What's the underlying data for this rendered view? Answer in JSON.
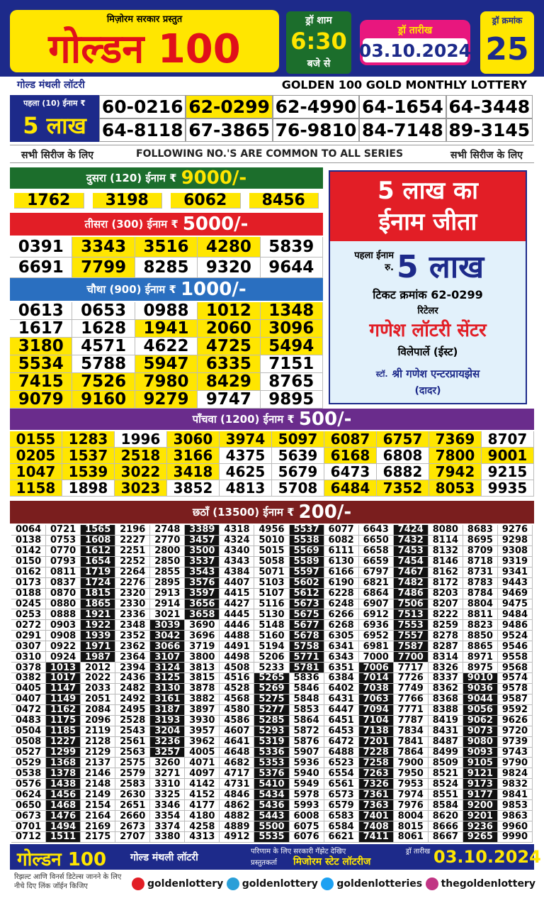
{
  "header": {
    "presented_by": "मिज़ोरम सरकार प्रस्तुत",
    "title": "गोल्डन 100",
    "draw_time_label": "ड्रॉ शाम",
    "draw_time": "6:30",
    "draw_time_suffix": "बजे से",
    "draw_date_label": "ड्रॉ तारीख",
    "draw_date": "03.10.2024",
    "draw_no_label": "ड्रॉ क्रमांक",
    "draw_no": "25",
    "subtitle_hindi": "गोल्ड मंथली लॉटरी",
    "subtitle_english": "GOLDEN 100 GOLD MONTHLY LOTTERY"
  },
  "first_prize": {
    "label": "पहला (10) ईनाम ₹",
    "amount": "5 लाख",
    "numbers": [
      "60-0216",
      "62-0299",
      "62-4990",
      "64-1654",
      "64-3448",
      "64-8118",
      "67-3865",
      "76-9810",
      "84-7148",
      "89-3145"
    ]
  },
  "common_note": {
    "left": "सभी सिरीज के लिए",
    "center": "FOLLOWING NO.'S ARE COMMON TO ALL SERIES",
    "right": "सभी सिरीज के लिए"
  },
  "prizes": [
    {
      "label": "दुसरा (120) ईनाम ₹",
      "amount": "9000/-",
      "numbers": [
        "1762",
        "3198",
        "6062",
        "8456"
      ]
    },
    {
      "label": "तीसरा (300) ईनाम ₹",
      "amount": "5000/-",
      "numbers": [
        "0391",
        "3343",
        "3516",
        "4280",
        "5839",
        "6691",
        "7799",
        "8285",
        "9320",
        "9644"
      ]
    },
    {
      "label": "चौथा (900) ईनाम ₹",
      "amount": "1000/-",
      "numbers": [
        "0613",
        "0653",
        "0988",
        "1012",
        "1348",
        "1617",
        "1628",
        "1941",
        "2060",
        "3096",
        "3180",
        "4571",
        "4622",
        "4725",
        "5494",
        "5534",
        "5788",
        "5947",
        "6335",
        "7151",
        "7415",
        "7526",
        "7980",
        "8429",
        "8765",
        "9079",
        "9160",
        "9279",
        "9747",
        "9895"
      ]
    },
    {
      "label": "पाँचवा (1200) ईनाम ₹",
      "amount": "500/-",
      "numbers": [
        "0155",
        "1283",
        "1996",
        "3060",
        "3974",
        "5097",
        "6087",
        "6757",
        "7369",
        "8707",
        "0205",
        "1537",
        "2518",
        "3166",
        "4375",
        "5639",
        "6168",
        "6808",
        "7800",
        "9001",
        "1047",
        "1539",
        "3022",
        "3418",
        "4625",
        "5679",
        "6473",
        "6882",
        "7942",
        "9215",
        "1158",
        "1898",
        "3023",
        "3852",
        "4813",
        "5708",
        "6484",
        "7352",
        "8053",
        "9935"
      ]
    },
    {
      "label": "छठाँ (13500) ईनाम ₹",
      "amount": "200/-",
      "columns": [
        [
          "0064",
          "0138",
          "0142",
          "0150",
          "0162",
          "0173",
          "0188",
          "0245",
          "0253",
          "0272",
          "0291",
          "0307",
          "0310",
          "0378",
          "0382",
          "0405",
          "0407",
          "0472",
          "0483",
          "0504",
          "0508",
          "0527",
          "0529",
          "0538",
          "0576",
          "0624",
          "0650",
          "0673",
          "0701",
          "0712"
        ],
        [
          "0721",
          "0753",
          "0770",
          "0793",
          "0811",
          "0837",
          "0870",
          "0880",
          "0888",
          "0903",
          "0908",
          "0922",
          "0924",
          "1013",
          "1017",
          "1147",
          "1149",
          "1162",
          "1175",
          "1185",
          "1227",
          "1299",
          "1368",
          "1378",
          "1438",
          "1456",
          "1468",
          "1476",
          "1494",
          "1511"
        ],
        [
          "1565",
          "1608",
          "1612",
          "1654",
          "1719",
          "1724",
          "1815",
          "1865",
          "1921",
          "1922",
          "1939",
          "1971",
          "1987",
          "2012",
          "2022",
          "2033",
          "2051",
          "2084",
          "2096",
          "2119",
          "2128",
          "2129",
          "2137",
          "2146",
          "2148",
          "2149",
          "2154",
          "2164",
          "2169",
          "2175"
        ],
        [
          "2196",
          "2227",
          "2251",
          "2252",
          "2264",
          "2276",
          "2320",
          "2330",
          "2336",
          "2348",
          "2352",
          "2362",
          "2364",
          "2394",
          "2436",
          "2482",
          "2492",
          "2495",
          "2528",
          "2543",
          "2561",
          "2563",
          "2575",
          "2579",
          "2583",
          "2630",
          "2651",
          "2660",
          "2673",
          "2707"
        ],
        [
          "2748",
          "2770",
          "2800",
          "2850",
          "2855",
          "2895",
          "2913",
          "2914",
          "3021",
          "3039",
          "3042",
          "3066",
          "3107",
          "3124",
          "3125",
          "3130",
          "3161",
          "3187",
          "3193",
          "3204",
          "3236",
          "3257",
          "3260",
          "3271",
          "3310",
          "3325",
          "3346",
          "3354",
          "3374",
          "3380"
        ],
        [
          "3389",
          "3457",
          "3500",
          "3537",
          "3543",
          "3576",
          "3597",
          "3656",
          "3658",
          "3690",
          "3696",
          "3719",
          "3800",
          "3813",
          "3815",
          "3878",
          "3882",
          "3897",
          "3930",
          "3957",
          "3962",
          "4005",
          "4071",
          "4097",
          "4142",
          "4152",
          "4177",
          "4180",
          "4258",
          "4313"
        ],
        [
          "4318",
          "4324",
          "4340",
          "4343",
          "4384",
          "4407",
          "4415",
          "4427",
          "4445",
          "4446",
          "4488",
          "4491",
          "4498",
          "4508",
          "4516",
          "4528",
          "4568",
          "4580",
          "4586",
          "4607",
          "4641",
          "4648",
          "4682",
          "4717",
          "4731",
          "4846",
          "4862",
          "4882",
          "4889",
          "4912"
        ],
        [
          "4956",
          "5010",
          "5015",
          "5058",
          "5071",
          "5103",
          "5107",
          "5116",
          "5130",
          "5148",
          "5160",
          "5194",
          "5206",
          "5233",
          "5265",
          "5269",
          "5275",
          "5277",
          "5285",
          "5293",
          "5319",
          "5336",
          "5353",
          "5376",
          "5410",
          "5434",
          "5436",
          "5443",
          "5500",
          "5535"
        ],
        [
          "5537",
          "5538",
          "5569",
          "5589",
          "5597",
          "5602",
          "5612",
          "5673",
          "5675",
          "5677",
          "5678",
          "5758",
          "5771",
          "5781",
          "5836",
          "5846",
          "5848",
          "5853",
          "5864",
          "5872",
          "5876",
          "5907",
          "5936",
          "5940",
          "5949",
          "5978",
          "5993",
          "6008",
          "6075",
          "6076"
        ],
        [
          "6077",
          "6082",
          "6111",
          "6130",
          "6166",
          "6190",
          "6228",
          "6248",
          "6266",
          "6268",
          "6305",
          "6341",
          "6343",
          "6351",
          "6384",
          "6402",
          "6431",
          "6447",
          "6451",
          "6453",
          "6472",
          "6488",
          "6523",
          "6554",
          "6561",
          "6573",
          "6579",
          "6583",
          "6584",
          "6621"
        ],
        [
          "6643",
          "6650",
          "6658",
          "6659",
          "6797",
          "6821",
          "6864",
          "6907",
          "6912",
          "6936",
          "6952",
          "6981",
          "7000",
          "7006",
          "7014",
          "7038",
          "7063",
          "7094",
          "7104",
          "7138",
          "7201",
          "7228",
          "7258",
          "7263",
          "7326",
          "7361",
          "7363",
          "7401",
          "7408",
          "7411"
        ],
        [
          "7424",
          "7432",
          "7453",
          "7454",
          "7467",
          "7482",
          "7486",
          "7506",
          "7513",
          "7553",
          "7557",
          "7587",
          "7700",
          "7717",
          "7726",
          "7749",
          "7766",
          "7771",
          "7787",
          "7834",
          "7841",
          "7864",
          "7900",
          "7950",
          "7953",
          "7974",
          "7976",
          "8004",
          "8015",
          "8061"
        ],
        [
          "8080",
          "8114",
          "8132",
          "8146",
          "8162",
          "8172",
          "8203",
          "8207",
          "8222",
          "8259",
          "8278",
          "8287",
          "8314",
          "8326",
          "8337",
          "8362",
          "8368",
          "8388",
          "8419",
          "8431",
          "8487",
          "8499",
          "8509",
          "8521",
          "8524",
          "8551",
          "8584",
          "8620",
          "8666",
          "8667"
        ],
        [
          "8683",
          "8695",
          "8709",
          "8718",
          "8731",
          "8783",
          "8784",
          "8804",
          "8811",
          "8823",
          "8850",
          "8865",
          "8971",
          "8975",
          "9010",
          "9036",
          "9044",
          "9056",
          "9062",
          "9073",
          "9080",
          "9093",
          "9105",
          "9121",
          "9173",
          "9177",
          "9200",
          "9201",
          "9236",
          "9265"
        ],
        [
          "9276",
          "9298",
          "9308",
          "9319",
          "9341",
          "9443",
          "9469",
          "9475",
          "9484",
          "9486",
          "9524",
          "9546",
          "9558",
          "9568",
          "9574",
          "9578",
          "9587",
          "9592",
          "9626",
          "9720",
          "9739",
          "9743",
          "9790",
          "9824",
          "9832",
          "9841",
          "9853",
          "9863",
          "9960",
          "9990"
        ]
      ]
    }
  ],
  "winner": {
    "headline_1": "5 लाख का",
    "headline_2": "ईनाम जीता",
    "prize_label": "पहला ईनाम रु.",
    "prize_amount": "5 लाख",
    "ticket": "टिकट क्रमांक 62-0299",
    "retailer_label": "रिटेलर",
    "retailer": "गणेश लॉटरी सेंटर",
    "location": "विलेपार्ले (ईस्ट)",
    "stockist_label": "स्टॉ.",
    "stockist": "श्री गणेश एन्टरप्रायझेस",
    "stockist_location": "(दादर)"
  },
  "footer": {
    "brand": "गोल्डन 100",
    "brand_sub": "गोल्ड मंथली लॉटरी",
    "gazette": "परिणाम के लिए सरकारी गॅझेट देखिए",
    "presenter_label": "प्रस्तुतकर्ता",
    "presenter": "मिजोरम स्टेट लॉटरीज",
    "date_label": "ड्रॉ तारीख",
    "date": "03.10.2024",
    "join_note": "रिझल्ट आणि विनर्स डिटेल्स जानने के लिए नीचे दिए लिंक जॉईन किजिए",
    "links": [
      "goldenlottery",
      "goldenlottery",
      "goldenlotteries",
      "thegoldenlottery"
    ]
  }
}
